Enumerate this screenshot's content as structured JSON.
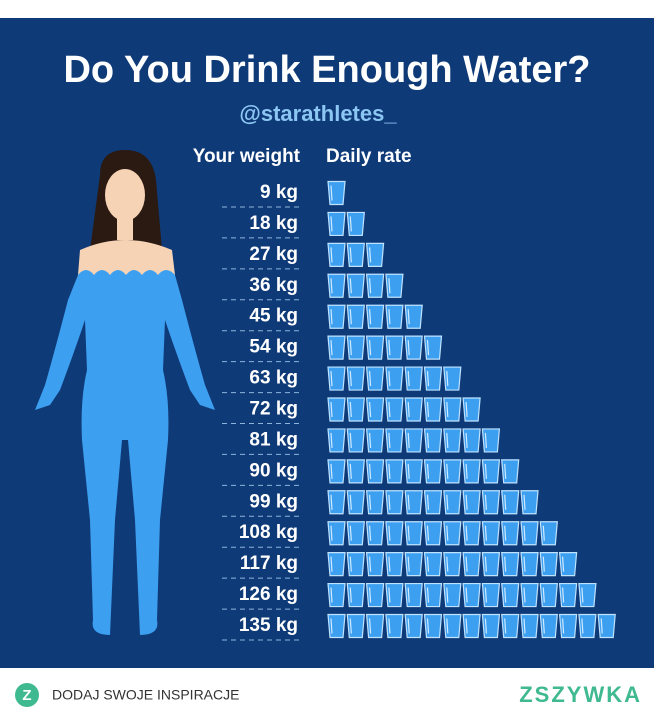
{
  "chart_data": {
    "type": "pictogram",
    "title": "Do You Drink Enough Water?",
    "subtitle": "@starathletes_",
    "category_header": "Your weight",
    "value_header": "Daily rate",
    "categories": [
      "9 kg",
      "18 kg",
      "27 kg",
      "36 kg",
      "45 kg",
      "54 kg",
      "63 kg",
      "72 kg",
      "81 kg",
      "90 kg",
      "99 kg",
      "108 kg",
      "117 kg",
      "126 kg",
      "135 kg"
    ],
    "values": [
      1,
      2,
      3,
      4,
      5,
      6,
      7,
      8,
      9,
      10,
      11,
      12,
      13,
      14,
      15
    ],
    "color": "#3d9ff0"
  },
  "footer": {
    "icon": "Z",
    "link": "DODAJ SWOJE INSPIRACJE",
    "brand": "ZSZYWKA"
  }
}
